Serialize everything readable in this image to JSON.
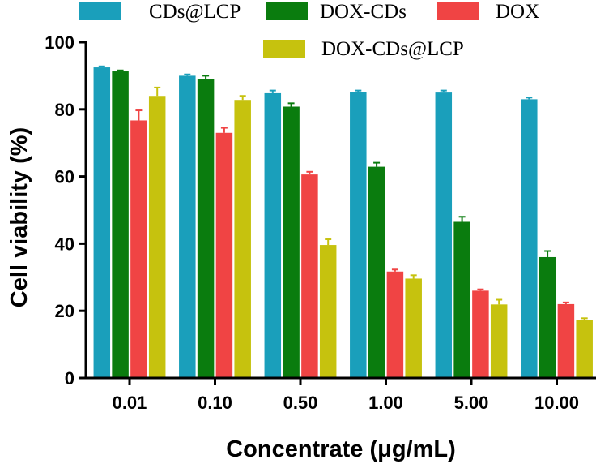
{
  "chart_data": {
    "type": "bar",
    "title": "",
    "xlabel": "Concentrate (μg/mL)",
    "ylabel": "Cell viability (%)",
    "ylim": [
      0,
      100
    ],
    "yticks": [
      0,
      20,
      40,
      60,
      80,
      100
    ],
    "categories": [
      "0.01",
      "0.10",
      "0.50",
      "1.00",
      "5.00",
      "10.00"
    ],
    "legend_position": "top",
    "series": [
      {
        "name": "CDs@LCP",
        "color": "#1a9fbb",
        "values": [
          92.5,
          90.0,
          84.8,
          85.2,
          85.0,
          83.0
        ],
        "errors": [
          0.3,
          0.4,
          0.8,
          0.4,
          0.6,
          0.5
        ]
      },
      {
        "name": "DOX-CDs",
        "color": "#0a7c0e",
        "values": [
          91.3,
          89.0,
          80.8,
          62.9,
          46.5,
          36.0
        ],
        "errors": [
          0.3,
          1.0,
          1.0,
          1.2,
          1.5,
          1.8
        ]
      },
      {
        "name": "DOX",
        "color": "#f04444",
        "values": [
          76.7,
          73.0,
          60.6,
          31.7,
          26.0,
          22.0
        ],
        "errors": [
          3.0,
          1.5,
          0.8,
          0.6,
          0.4,
          0.5
        ]
      },
      {
        "name": "DOX-CDs@LCP",
        "color": "#c6c20e",
        "values": [
          84.0,
          82.8,
          39.6,
          29.6,
          21.9,
          17.3
        ],
        "errors": [
          2.5,
          1.2,
          1.7,
          1.0,
          1.4,
          0.5
        ]
      }
    ]
  }
}
